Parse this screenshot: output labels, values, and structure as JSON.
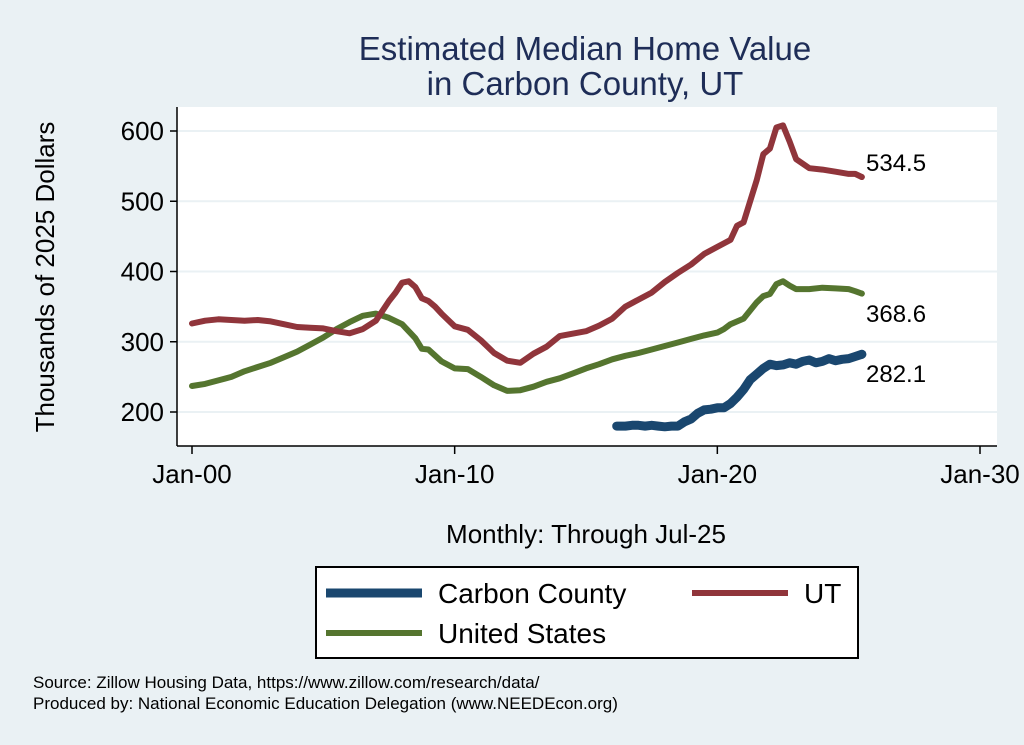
{
  "chart_data": {
    "type": "line",
    "title_lines": [
      "Estimated Median Home Value",
      "in Carbon County, UT"
    ],
    "ylabel": "Thousands of 2025 Dollars",
    "xlabel": "Monthly: Through Jul-25",
    "ylim": [
      160,
      620
    ],
    "xlim": [
      1999.6,
      2030.2
    ],
    "y_ticks": [
      200,
      300,
      400,
      500,
      600
    ],
    "x_ticks": [
      {
        "value": 2000,
        "label": "Jan-00"
      },
      {
        "value": 2010,
        "label": "Jan-10"
      },
      {
        "value": 2020,
        "label": "Jan-20"
      },
      {
        "value": 2030,
        "label": "Jan-30"
      }
    ],
    "grid": true,
    "legend_position": "bottom",
    "series": [
      {
        "name": "Carbon County",
        "color": "#1A476F",
        "end_label": "282.1",
        "x": [
          2016.17,
          2016.5,
          2016.75,
          2017.0,
          2017.25,
          2017.5,
          2017.75,
          2018.0,
          2018.25,
          2018.5,
          2018.75,
          2019.0,
          2019.25,
          2019.5,
          2019.75,
          2020.0,
          2020.25,
          2020.5,
          2020.75,
          2021.0,
          2021.25,
          2021.5,
          2021.75,
          2022.0,
          2022.25,
          2022.5,
          2022.75,
          2023.0,
          2023.25,
          2023.5,
          2023.75,
          2024.0,
          2024.25,
          2024.5,
          2024.75,
          2025.0,
          2025.25,
          2025.5
        ],
        "y": [
          180,
          180,
          181,
          181,
          180,
          181,
          180,
          179,
          180,
          180,
          186,
          190,
          198,
          203,
          204,
          206,
          206,
          212,
          221,
          232,
          246,
          254,
          262,
          268,
          266,
          267,
          270,
          268,
          272,
          274,
          270,
          272,
          276,
          273,
          275,
          276,
          279,
          282.1
        ]
      },
      {
        "name": "UT",
        "color": "#90353B",
        "end_label": "534.5",
        "x": [
          2000.0,
          2000.5,
          2001.0,
          2001.5,
          2002.0,
          2002.5,
          2003.0,
          2003.5,
          2004.0,
          2004.5,
          2005.0,
          2005.5,
          2006.0,
          2006.5,
          2007.0,
          2007.5,
          2007.75,
          2008.0,
          2008.25,
          2008.5,
          2008.75,
          2009.0,
          2009.25,
          2009.5,
          2010.0,
          2010.5,
          2011.0,
          2011.5,
          2012.0,
          2012.5,
          2013.0,
          2013.5,
          2014.0,
          2015.0,
          2015.5,
          2016.0,
          2016.5,
          2017.0,
          2017.5,
          2018.0,
          2018.5,
          2019.0,
          2019.5,
          2020.0,
          2020.5,
          2020.75,
          2021.0,
          2021.5,
          2021.75,
          2022.0,
          2022.25,
          2022.5,
          2022.75,
          2023.0,
          2023.5,
          2024.0,
          2024.5,
          2025.0,
          2025.25,
          2025.5
        ],
        "y": [
          326,
          330,
          332,
          331,
          330,
          331,
          329,
          325,
          321,
          320,
          319,
          315,
          312,
          318,
          330,
          358,
          370,
          384,
          386,
          378,
          362,
          358,
          350,
          340,
          322,
          317,
          302,
          284,
          273,
          270,
          283,
          293,
          308,
          315,
          323,
          333,
          350,
          360,
          370,
          385,
          398,
          410,
          425,
          435,
          445,
          465,
          470,
          530,
          567,
          575,
          605,
          608,
          585,
          560,
          547,
          545,
          542,
          539,
          539,
          534.5
        ]
      },
      {
        "name": "United States",
        "color": "#55752F",
        "end_label": "368.6",
        "x": [
          2000.0,
          2000.5,
          2001.0,
          2001.5,
          2002.0,
          2002.5,
          2003.0,
          2003.5,
          2004.0,
          2004.5,
          2005.0,
          2005.5,
          2006.0,
          2006.5,
          2007.0,
          2007.5,
          2008.0,
          2008.5,
          2008.75,
          2009.0,
          2009.5,
          2010.0,
          2010.5,
          2011.0,
          2011.5,
          2012.0,
          2012.5,
          2013.0,
          2013.5,
          2014.0,
          2014.5,
          2015.0,
          2015.5,
          2016.0,
          2016.5,
          2017.0,
          2017.5,
          2018.0,
          2018.5,
          2019.0,
          2019.5,
          2020.0,
          2020.25,
          2020.5,
          2021.0,
          2021.5,
          2021.75,
          2022.0,
          2022.25,
          2022.5,
          2022.75,
          2023.0,
          2023.5,
          2024.0,
          2024.5,
          2025.0,
          2025.25,
          2025.5
        ],
        "y": [
          237,
          240,
          245,
          250,
          258,
          264,
          270,
          278,
          286,
          296,
          306,
          318,
          328,
          337,
          340,
          334,
          325,
          305,
          290,
          289,
          272,
          262,
          261,
          250,
          238,
          230,
          231,
          236,
          243,
          248,
          255,
          262,
          268,
          275,
          280,
          284,
          289,
          294,
          299,
          304,
          309,
          313,
          318,
          325,
          333,
          356,
          365,
          368,
          382,
          386,
          380,
          375,
          375,
          377,
          376,
          375,
          372,
          368.6
        ]
      }
    ]
  },
  "legend": {
    "items": [
      {
        "label": "Carbon County",
        "color": "#1A476F"
      },
      {
        "label": "UT",
        "color": "#90353B"
      },
      {
        "label": "United States",
        "color": "#55752F"
      }
    ]
  },
  "footer": {
    "source": "Source: Zillow Housing Data, https://www.zillow.com/research/data/",
    "produced_by": "Produced by: National Economic Education Delegation (www.NEEDEcon.org)"
  }
}
